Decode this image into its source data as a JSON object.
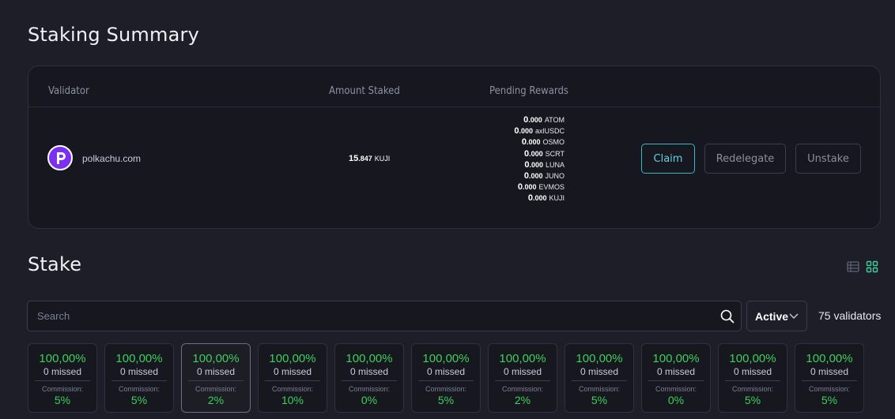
{
  "summary": {
    "title": "Staking Summary",
    "headers": {
      "validator": "Validator",
      "amount": "Amount Staked",
      "rewards": "Pending Rewards"
    },
    "row": {
      "validator_name": "polkachu.com",
      "amount_int": "15",
      "amount_dec": ".847",
      "amount_unit": "KUJI",
      "rewards": [
        {
          "int": "0",
          "dec": ".000",
          "unit": "ATOM"
        },
        {
          "int": "0",
          "dec": ".000",
          "unit": "axlUSDC"
        },
        {
          "int": "0",
          "dec": ".000",
          "unit": "OSMO"
        },
        {
          "int": "0",
          "dec": ".000",
          "unit": "SCRT"
        },
        {
          "int": "0",
          "dec": ".000",
          "unit": "LUNA"
        },
        {
          "int": "0",
          "dec": ".000",
          "unit": "JUNO"
        },
        {
          "int": "0",
          "dec": ".000",
          "unit": "EVMOS"
        },
        {
          "int": "0",
          "dec": ".000",
          "unit": "KUJI"
        }
      ],
      "buttons": {
        "claim": "Claim",
        "redelegate": "Redelegate",
        "unstake": "Unstake"
      }
    }
  },
  "stake": {
    "title": "Stake",
    "search_placeholder": "Search",
    "filter_value": "Active",
    "validator_count": "75 validators",
    "view_icons": [
      "list-view-icon",
      "grid-view-icon"
    ],
    "cards": [
      {
        "uptime": "100,00%",
        "missed": "0 missed",
        "commission_label": "Commission:",
        "commission": "5%"
      },
      {
        "uptime": "100,00%",
        "missed": "0 missed",
        "commission_label": "Commission:",
        "commission": "5%"
      },
      {
        "uptime": "100,00%",
        "missed": "0 missed",
        "commission_label": "Commission:",
        "commission": "2%"
      },
      {
        "uptime": "100,00%",
        "missed": "0 missed",
        "commission_label": "Commission:",
        "commission": "10%"
      },
      {
        "uptime": "100,00%",
        "missed": "0 missed",
        "commission_label": "Commission:",
        "commission": "0%"
      },
      {
        "uptime": "100,00%",
        "missed": "0 missed",
        "commission_label": "Commission:",
        "commission": "5%"
      },
      {
        "uptime": "100,00%",
        "missed": "0 missed",
        "commission_label": "Commission:",
        "commission": "2%"
      },
      {
        "uptime": "100,00%",
        "missed": "0 missed",
        "commission_label": "Commission:",
        "commission": "5%"
      },
      {
        "uptime": "100,00%",
        "missed": "0 missed",
        "commission_label": "Commission:",
        "commission": "0%"
      },
      {
        "uptime": "100,00%",
        "missed": "0 missed",
        "commission_label": "Commission:",
        "commission": "5%"
      },
      {
        "uptime": "100,00%",
        "missed": "0 missed",
        "commission_label": "Commission:",
        "commission": "5%"
      }
    ]
  },
  "colors": {
    "background": "#1d1e28",
    "card": "#17181f",
    "accent_cyan": "#5fd3e3",
    "success_green": "#3ecf5c",
    "avatar_purple": "#7b2ff0"
  }
}
